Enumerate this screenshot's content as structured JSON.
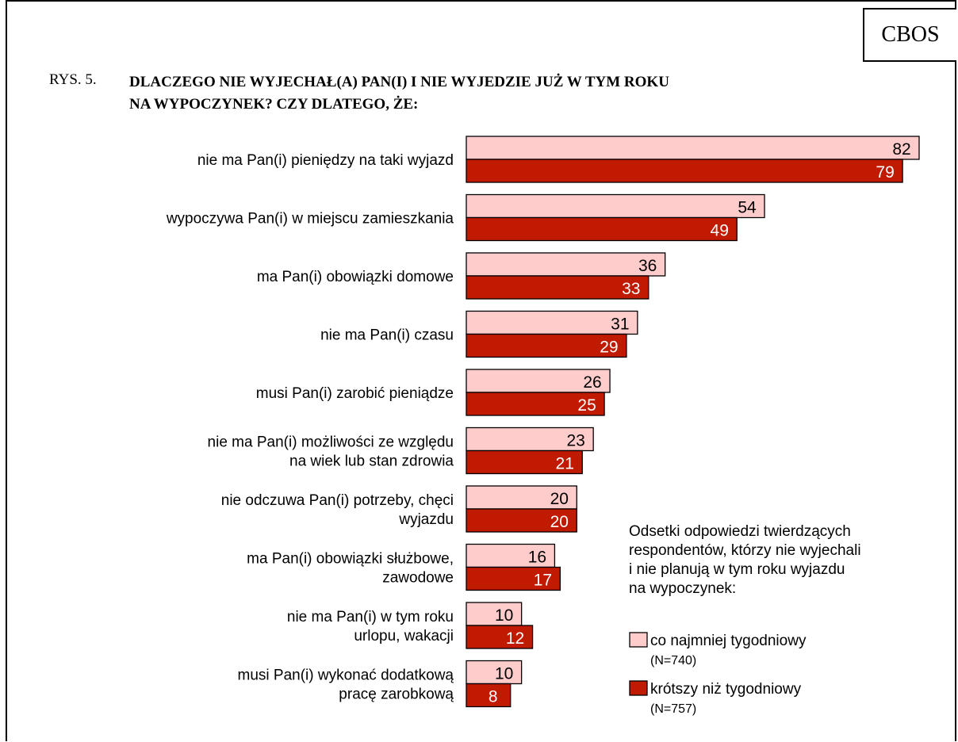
{
  "badge": "CBOS",
  "figure_label": "RYS. 5.",
  "title_lines": [
    "DLACZEGO NIE WYJECHAŁ(A) PAN(I) I NIE WYJEDZIE JUŻ W TYM ROKU",
    "NA WYPOCZYNEK? CZY DLATEGO, ŻE:"
  ],
  "colors": {
    "series1": "#ffcccc",
    "series2": "#c01a00",
    "border": "#000000"
  },
  "chart_data": {
    "type": "bar",
    "orientation": "horizontal",
    "categories": [
      [
        "nie ma Pan(i) pieniędzy na taki wyjazd"
      ],
      [
        "wypoczywa Pan(i) w miejscu zamieszkania"
      ],
      [
        "ma Pan(i) obowiązki domowe"
      ],
      [
        "nie ma Pan(i) czasu"
      ],
      [
        "musi Pan(i) zarobić pieniądze"
      ],
      [
        "nie ma Pan(i) możliwości ze względu",
        "na wiek lub  stan zdrowia"
      ],
      [
        "nie odczuwa Pan(i) potrzeby, chęci",
        "wyjazdu"
      ],
      [
        "ma Pan(i) obowiązki służbowe,",
        "zawodowe"
      ],
      [
        "nie ma Pan(i) w tym roku",
        "urlopu, wakacji"
      ],
      [
        "musi Pan(i) wykonać dodatkową",
        "pracę zarobkową"
      ]
    ],
    "series": [
      {
        "name": "co najmniej tygodniowy",
        "n": "(N=740)",
        "values": [
          82,
          54,
          36,
          31,
          26,
          23,
          20,
          16,
          10,
          10
        ]
      },
      {
        "name": "krótszy niż tygodniowy",
        "n": "(N=757)",
        "values": [
          79,
          49,
          33,
          29,
          25,
          21,
          20,
          17,
          12,
          8
        ]
      }
    ],
    "xlim": [
      0,
      82
    ],
    "data_labels": true,
    "grid": false,
    "legend": {
      "placement": "bottom-right",
      "caption_lines": [
        "Odsetki odpowiedzi twierdzących",
        "respondentów, którzy nie wyjechali",
        "i nie planują w tym roku wyjazdu",
        "na wypoczynek:"
      ]
    }
  }
}
